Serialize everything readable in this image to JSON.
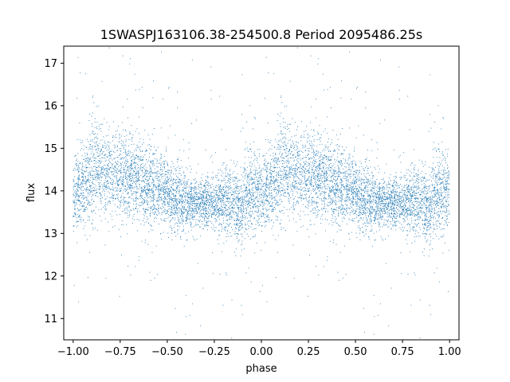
{
  "chart_data": {
    "type": "scatter",
    "title": "1SWASPJ163106.38-254500.8 Period 2095486.25s",
    "xlabel": "phase",
    "ylabel": "flux",
    "xlim": [
      -1.05,
      1.05
    ],
    "ylim": [
      10.5,
      17.4
    ],
    "xticks": [
      -1.0,
      -0.75,
      -0.5,
      -0.25,
      0.0,
      0.25,
      0.5,
      0.75,
      1.0
    ],
    "xtick_labels": [
      "−1.00",
      "−0.75",
      "−0.50",
      "−0.25",
      "0.00",
      "0.25",
      "0.50",
      "0.75",
      "1.00"
    ],
    "yticks": [
      11,
      12,
      13,
      14,
      15,
      16,
      17
    ],
    "ytick_labels": [
      "11",
      "12",
      "13",
      "14",
      "15",
      "16",
      "17"
    ],
    "grid": false,
    "legend": "none",
    "point_color": "#1f77b4",
    "series": [
      {
        "phase_profile": [
          {
            "phase": 0.0,
            "median": 14.0,
            "scatter": 0.4
          },
          {
            "phase": 0.03,
            "median": 14.1,
            "scatter": 0.45
          },
          {
            "phase": 0.07,
            "median": 14.1,
            "scatter": 0.45
          },
          {
            "phase": 0.1,
            "median": 14.4,
            "scatter": 0.7
          },
          {
            "phase": 0.14,
            "median": 14.6,
            "scatter": 0.55
          },
          {
            "phase": 0.2,
            "median": 14.3,
            "scatter": 0.5
          },
          {
            "phase": 0.3,
            "median": 14.4,
            "scatter": 0.5
          },
          {
            "phase": 0.4,
            "median": 14.1,
            "scatter": 0.45
          },
          {
            "phase": 0.5,
            "median": 14.0,
            "scatter": 0.4
          },
          {
            "phase": 0.58,
            "median": 13.7,
            "scatter": 0.4
          },
          {
            "phase": 0.65,
            "median": 13.7,
            "scatter": 0.3
          },
          {
            "phase": 0.75,
            "median": 13.7,
            "scatter": 0.3
          },
          {
            "phase": 0.83,
            "median": 13.8,
            "scatter": 0.4
          },
          {
            "phase": 0.88,
            "median": 13.6,
            "scatter": 0.45
          },
          {
            "phase": 0.95,
            "median": 14.0,
            "scatter": 0.5
          },
          {
            "phase": 1.0,
            "median": 14.0,
            "scatter": 0.4
          }
        ],
        "repeated_over": [
          -1.0,
          1.0
        ],
        "approx_point_count": 9000
      }
    ]
  }
}
